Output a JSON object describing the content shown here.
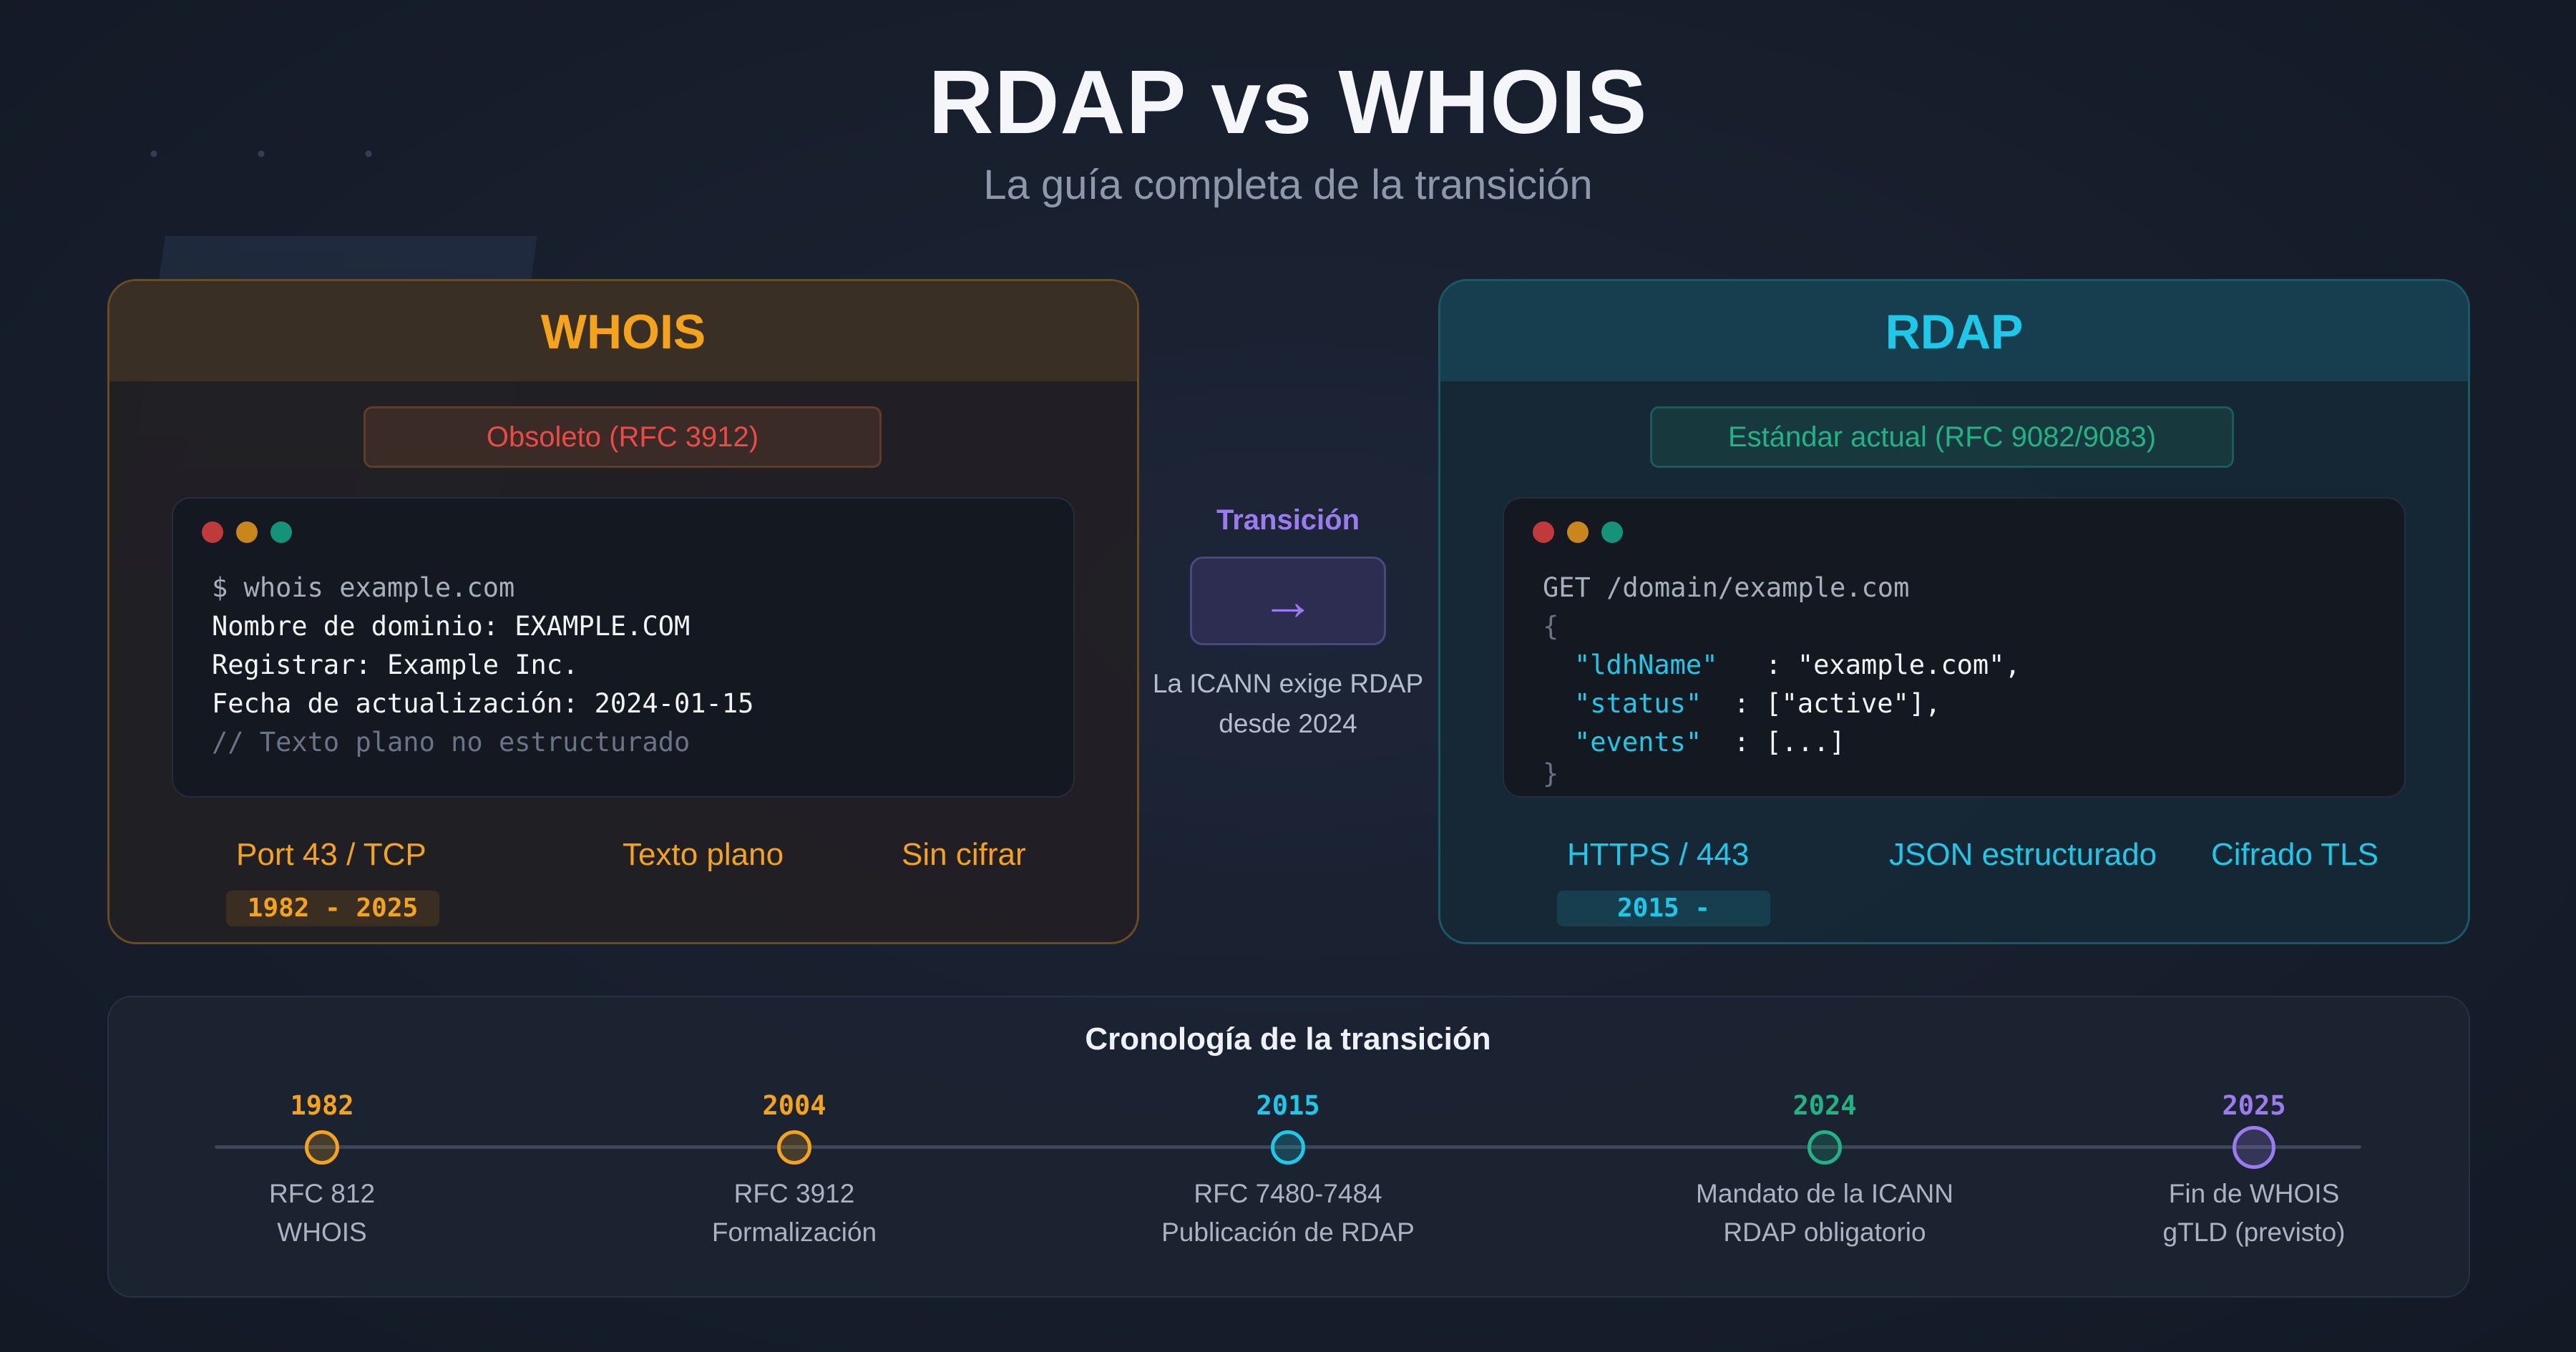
{
  "title": "RDAP vs WHOIS",
  "subtitle": "La guía completa de la transición",
  "whois": {
    "title": "WHOIS",
    "badge": "Obsoleto (RFC 3912)",
    "terminal": [
      "$ whois example.com",
      "Nombre de dominio: EXAMPLE.COM",
      "Registrar: Example Inc.",
      "Fecha de actualización: 2024-01-15",
      "// Texto plano no estructurado"
    ],
    "features": [
      "Port 43 / TCP",
      "Texto plano",
      "Sin cifrar"
    ],
    "years": "1982 - 2025",
    "accent": "#f5a31a"
  },
  "rdap": {
    "title": "RDAP",
    "badge": "Estándar actual (RFC 9082/9083)",
    "terminal": {
      "request": "GET /domain/example.com",
      "open": "{",
      "fields": [
        {
          "key": "\"ldhName\"",
          "sep": "   : ",
          "value": "\"example.com\","
        },
        {
          "key": "\"status\"",
          "sep": "  : ",
          "value": "[\"active\"],"
        },
        {
          "key": "\"events\"",
          "sep": "  : ",
          "value": "[...]"
        }
      ],
      "close": "}"
    },
    "features": [
      "HTTPS / 443",
      "JSON estructurado",
      "Cifrado TLS"
    ],
    "years": "2015 -",
    "accent": "#1ec8e8"
  },
  "transition": {
    "label": "Transición",
    "arrow_icon": "arrow-right-icon",
    "note_line1": "La ICANN exige RDAP",
    "note_line2": "desde 2024"
  },
  "timeline": {
    "title": "Cronología de la transición",
    "events": [
      {
        "year": "1982",
        "line1": "RFC 812",
        "line2": "WHOIS",
        "color": "#f5a31a"
      },
      {
        "year": "2004",
        "line1": "RFC 3912",
        "line2": "Formalización",
        "color": "#f5a31a"
      },
      {
        "year": "2015",
        "line1": "RFC 7480-7484",
        "line2": "Publicación de RDAP",
        "color": "#1ec8e8"
      },
      {
        "year": "2024",
        "line1": "Mandato de la ICANN",
        "line2": "RDAP obligatorio",
        "color": "#20b385"
      },
      {
        "year": "2025",
        "line1": "Fin de WHOIS",
        "line2": "gTLD (previsto)",
        "color": "#9b7cf0"
      }
    ]
  }
}
